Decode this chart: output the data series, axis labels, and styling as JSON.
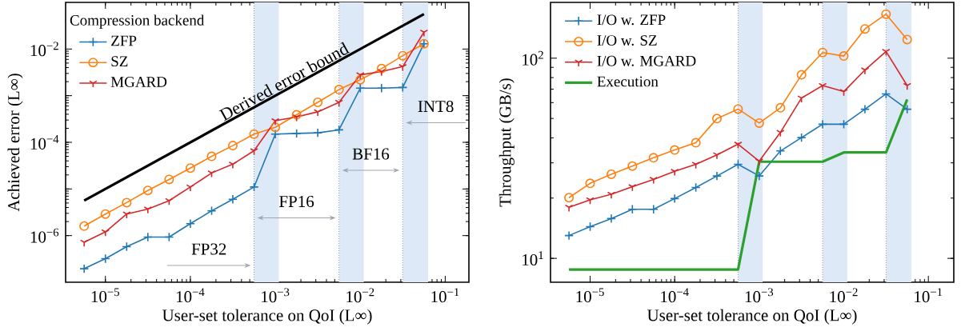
{
  "chart_data": [
    {
      "type": "line",
      "xlabel": "User-set tolerance on QoI (L∞)",
      "ylabel": "Achieved error (L∞)",
      "legend_title": "Compression backend",
      "legend": "top left",
      "log": "xy",
      "xlim": [
        3.4e-06,
        0.19
      ],
      "ylim": [
        1e-07,
        0.1
      ],
      "xticks": [
        {
          "value": 1e-05,
          "label": "10$^{−5}$"
        },
        {
          "value": 0.0001,
          "label": "10$^{−4}$"
        },
        {
          "value": 0.001,
          "label": "10$^{−3}$"
        },
        {
          "value": 0.01,
          "label": "10$^{−2}$"
        },
        {
          "value": 0.1,
          "label": "10$^{−1}$"
        }
      ],
      "yticks": [
        {
          "value": 1e-06,
          "label": "10$^{−6}$"
        },
        {
          "value": 1e-05,
          "label": null
        },
        {
          "value": 0.0001,
          "label": "10$^{−4}$"
        },
        {
          "value": 0.001,
          "label": null
        },
        {
          "value": 0.01,
          "label": "10$^{−2}$"
        }
      ],
      "x": [
        5.62e-06,
        1e-05,
        1.78e-05,
        3.16e-05,
        5.62e-05,
        0.0001,
        0.000178,
        0.000316,
        0.000562,
        0.001,
        0.00178,
        0.00316,
        0.00562,
        0.01,
        0.0178,
        0.0316,
        0.0562
      ],
      "series": [
        {
          "name": "ZFP",
          "color": "#1f77b4",
          "marker": "cross",
          "values": [
            1.95e-07,
            3.2e-07,
            5.8e-07,
            9.3e-07,
            9.3e-07,
            1.8e-06,
            3.4e-06,
            6e-06,
            1.1e-05,
            0.00015,
            0.000155,
            0.00016,
            0.000185,
            0.00145,
            0.00145,
            0.0015,
            0.013
          ]
        },
        {
          "name": "SZ",
          "color": "#ff7f0e",
          "marker": "circle",
          "values": [
            1.6e-06,
            2.9e-06,
            5.1e-06,
            9.3e-06,
            1.6e-05,
            2.8e-05,
            5e-05,
            8.5e-05,
            0.00015,
            0.00021,
            0.00039,
            0.00072,
            0.00135,
            0.0022,
            0.0038,
            0.0072,
            0.013
          ]
        },
        {
          "name": "MGARD",
          "color": "#d62728",
          "marker": "cross",
          "values": [
            7.2e-07,
            1.2e-06,
            2.9e-06,
            3.7e-06,
            5.6e-06,
            1.1e-05,
            2.2e-05,
            3.4e-05,
            6.6e-05,
            0.00029,
            0.00035,
            0.00045,
            0.00072,
            0.0028,
            0.0033,
            0.0042,
            0.023
          ]
        },
        {
          "name": "Derived error bound",
          "color": "#000000",
          "marker": "none",
          "x": [
            5.62e-06,
            0.0562
          ],
          "values": [
            5.62e-06,
            0.0562
          ]
        }
      ],
      "bands": [
        {
          "axis": "x",
          "from": 0.000562,
          "to": 0.0011,
          "color": "#dde9f7"
        },
        {
          "axis": "x",
          "from": 0.00562,
          "to": 0.011,
          "color": "#dde9f7"
        },
        {
          "axis": "x",
          "from": 0.0316,
          "to": 0.063,
          "color": "#dde9f7"
        }
      ],
      "ref_lines": [
        {
          "axis": "x",
          "value": 0.000562,
          "color": "#8a96a3",
          "line_style": "dotted"
        },
        {
          "axis": "x",
          "value": 0.00562,
          "color": "#8a96a3",
          "line_style": "dotted"
        },
        {
          "axis": "x",
          "value": 0.0316,
          "color": "#8a96a3",
          "line_style": "dotted"
        }
      ],
      "annotations": [
        "FP32",
        "FP16",
        "BF16",
        "INT8"
      ]
    },
    {
      "type": "line",
      "xlabel": "User-set tolerance on QoI (L∞)",
      "ylabel": "Throughput (GB/s)",
      "legend": "top left",
      "log": "xy",
      "xlim": [
        3.4e-06,
        0.2
      ],
      "ylim": [
        7.6,
        190
      ],
      "xticks": [
        {
          "value": 1e-05,
          "label": "10$^{−5}$"
        },
        {
          "value": 0.0001,
          "label": "10$^{−4}$"
        },
        {
          "value": 0.001,
          "label": "10$^{−3}$"
        },
        {
          "value": 0.01,
          "label": "10$^{−2}$"
        },
        {
          "value": 0.1,
          "label": "10$^{−1}$"
        }
      ],
      "yticks": [
        {
          "value": 10,
          "label": "10$^{1}$"
        },
        {
          "value": 100,
          "label": "10$^{2}$"
        }
      ],
      "x": [
        5.62e-06,
        1e-05,
        1.78e-05,
        3.16e-05,
        5.62e-05,
        0.0001,
        0.000178,
        0.000316,
        0.000562,
        0.001,
        0.00178,
        0.00316,
        0.00562,
        0.01,
        0.0178,
        0.0316,
        0.0562
      ],
      "series": [
        {
          "name": "I/O w. ZFP",
          "color": "#1f77b4",
          "marker": "cross",
          "values": [
            13.0,
            14.4,
            15.8,
            17.6,
            17.6,
            19.9,
            22.6,
            25.8,
            29.5,
            25.8,
            34.4,
            40.1,
            46.8,
            46.8,
            55.6,
            66.3,
            55.6
          ]
        },
        {
          "name": "I/O w. SZ",
          "color": "#ff7f0e",
          "marker": "circle",
          "values": [
            20.1,
            23.7,
            26.3,
            28.9,
            31.8,
            34.8,
            37.8,
            49.9,
            55.7,
            47.4,
            56.5,
            82.6,
            106.7,
            102.5,
            140,
            166,
            124
          ]
        },
        {
          "name": "I/O w. MGARD",
          "color": "#d62728",
          "marker": "cross",
          "values": [
            18.0,
            19.6,
            20.9,
            22.8,
            24.8,
            27.2,
            29.5,
            32.9,
            37.2,
            30.6,
            42.6,
            63.2,
            73.0,
            68.1,
            87.3,
            108,
            73.0
          ]
        },
        {
          "name": "Execution",
          "color": "#2ca02c",
          "marker": "none",
          "x": [
            5.62e-06,
            0.000562,
            0.001,
            0.00562,
            0.01,
            0.0316,
            0.0562
          ],
          "values": [
            8.8,
            8.8,
            30.4,
            30.4,
            33.8,
            33.8,
            62.2
          ]
        }
      ],
      "bands": [
        {
          "axis": "x",
          "from": 0.000562,
          "to": 0.0011,
          "color": "#dde9f7"
        },
        {
          "axis": "x",
          "from": 0.00562,
          "to": 0.011,
          "color": "#dde9f7"
        },
        {
          "axis": "x",
          "from": 0.0316,
          "to": 0.063,
          "color": "#dde9f7"
        }
      ],
      "ref_lines": [
        {
          "axis": "x",
          "value": 0.000562,
          "color": "#8a96a3",
          "line_style": "dotted"
        },
        {
          "axis": "x",
          "value": 0.00562,
          "color": "#8a96a3",
          "line_style": "dotted"
        },
        {
          "axis": "x",
          "value": 0.0316,
          "color": "#8a96a3",
          "line_style": "dotted"
        }
      ]
    }
  ]
}
